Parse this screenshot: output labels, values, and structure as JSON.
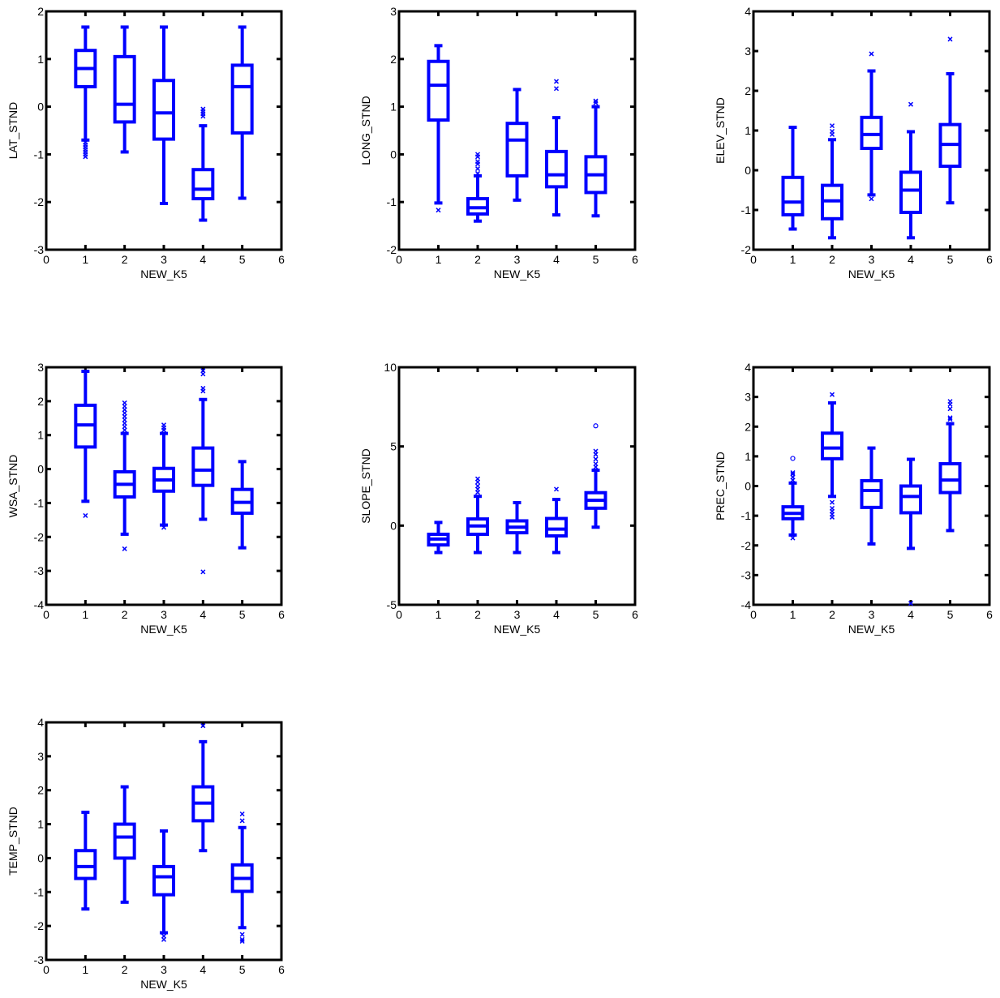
{
  "figure": {
    "box_color": "#0000ff",
    "axis_color": "#000000",
    "background": "#ffffff"
  },
  "chart_data": [
    {
      "type": "box",
      "xlabel": "NEW_K5",
      "ylabel": "LAT_STND",
      "xlim": [
        0,
        6
      ],
      "ylim": [
        -3,
        2
      ],
      "xticks": [
        0,
        1,
        2,
        3,
        4,
        5,
        6
      ],
      "yticks": [
        -3,
        -2,
        -1,
        0,
        1,
        2
      ],
      "categories": [
        1,
        2,
        3,
        4,
        5
      ],
      "boxes": [
        {
          "x": 1,
          "whisker_low": -0.7,
          "q1": 0.42,
          "median": 0.8,
          "q3": 1.18,
          "whisker_high": 1.67,
          "outliers": [
            -0.75,
            -0.8,
            -0.85,
            -0.9,
            -0.95,
            -1.0,
            -1.05
          ],
          "outlier_marker": "x"
        },
        {
          "x": 2,
          "whisker_low": -0.95,
          "q1": -0.32,
          "median": 0.05,
          "q3": 1.05,
          "whisker_high": 1.67,
          "outliers": [],
          "outlier_marker": "x"
        },
        {
          "x": 3,
          "whisker_low": -2.03,
          "q1": -0.68,
          "median": -0.13,
          "q3": 0.55,
          "whisker_high": 1.67,
          "outliers": [],
          "outlier_marker": "x"
        },
        {
          "x": 4,
          "whisker_low": -2.38,
          "q1": -1.93,
          "median": -1.73,
          "q3": -1.32,
          "whisker_high": -0.4,
          "outliers": [
            -0.05,
            -0.1,
            -0.15,
            -0.2
          ],
          "outlier_marker": "x"
        },
        {
          "x": 5,
          "whisker_low": -1.92,
          "q1": -0.55,
          "median": 0.42,
          "q3": 0.87,
          "whisker_high": 1.67,
          "outliers": [],
          "outlier_marker": "x"
        }
      ]
    },
    {
      "type": "box",
      "xlabel": "NEW_K5",
      "ylabel": "LONG_STND",
      "xlim": [
        0,
        6
      ],
      "ylim": [
        -2,
        3
      ],
      "xticks": [
        0,
        1,
        2,
        3,
        4,
        5,
        6
      ],
      "yticks": [
        -2,
        -1,
        0,
        1,
        2,
        3
      ],
      "categories": [
        1,
        2,
        3,
        4,
        5
      ],
      "boxes": [
        {
          "x": 1,
          "whisker_low": -1.02,
          "q1": 0.72,
          "median": 1.45,
          "q3": 1.95,
          "whisker_high": 2.28,
          "outliers": [
            -1.17
          ],
          "outlier_marker": "x"
        },
        {
          "x": 2,
          "whisker_low": -1.4,
          "q1": -1.25,
          "median": -1.12,
          "q3": -0.93,
          "whisker_high": -0.45,
          "outliers": [
            -0.4,
            -0.3,
            -0.2,
            -0.15,
            -0.05,
            0.0
          ],
          "outlier_marker": "x"
        },
        {
          "x": 3,
          "whisker_low": -0.96,
          "q1": -0.45,
          "median": 0.3,
          "q3": 0.65,
          "whisker_high": 1.36,
          "outliers": [],
          "outlier_marker": "x"
        },
        {
          "x": 4,
          "whisker_low": -1.27,
          "q1": -0.68,
          "median": -0.43,
          "q3": 0.06,
          "whisker_high": 0.77,
          "outliers": [
            1.38,
            1.53
          ],
          "outlier_marker": "x"
        },
        {
          "x": 5,
          "whisker_low": -1.29,
          "q1": -0.8,
          "median": -0.43,
          "q3": -0.05,
          "whisker_high": 1.0,
          "outliers": [
            1.08,
            1.12
          ],
          "outlier_marker": "x"
        }
      ]
    },
    {
      "type": "box",
      "xlabel": "NEW_K5",
      "ylabel": "ELEV_STND",
      "xlim": [
        0,
        6
      ],
      "ylim": [
        -2,
        4
      ],
      "xticks": [
        0,
        1,
        2,
        3,
        4,
        5,
        6
      ],
      "yticks": [
        -2,
        -1,
        0,
        1,
        2,
        3,
        4
      ],
      "categories": [
        1,
        2,
        3,
        4,
        5
      ],
      "boxes": [
        {
          "x": 1,
          "whisker_low": -1.48,
          "q1": -1.12,
          "median": -0.8,
          "q3": -0.18,
          "whisker_high": 1.08,
          "outliers": [],
          "outlier_marker": "x"
        },
        {
          "x": 2,
          "whisker_low": -1.7,
          "q1": -1.22,
          "median": -0.77,
          "q3": -0.38,
          "whisker_high": 0.77,
          "outliers": [
            0.9,
            0.98,
            1.12
          ],
          "outlier_marker": "x"
        },
        {
          "x": 3,
          "whisker_low": -0.62,
          "q1": 0.55,
          "median": 0.9,
          "q3": 1.33,
          "whisker_high": 2.5,
          "outliers": [
            -0.72,
            2.93
          ],
          "outlier_marker": "x"
        },
        {
          "x": 4,
          "whisker_low": -1.7,
          "q1": -1.06,
          "median": -0.5,
          "q3": -0.05,
          "whisker_high": 0.97,
          "outliers": [
            1.66
          ],
          "outlier_marker": "x"
        },
        {
          "x": 5,
          "whisker_low": -0.82,
          "q1": 0.1,
          "median": 0.65,
          "q3": 1.15,
          "whisker_high": 2.43,
          "outliers": [
            3.3
          ],
          "outlier_marker": "x"
        }
      ]
    },
    {
      "type": "box",
      "xlabel": "NEW_K5",
      "ylabel": "WSA_STND",
      "xlim": [
        0,
        6
      ],
      "ylim": [
        -4,
        3
      ],
      "xticks": [
        0,
        1,
        2,
        3,
        4,
        5,
        6
      ],
      "yticks": [
        -4,
        -3,
        -2,
        -1,
        0,
        1,
        2,
        3
      ],
      "categories": [
        1,
        2,
        3,
        4,
        5
      ],
      "boxes": [
        {
          "x": 1,
          "whisker_low": -0.95,
          "q1": 0.65,
          "median": 1.3,
          "q3": 1.88,
          "whisker_high": 2.88,
          "outliers": [
            -1.37
          ],
          "outlier_marker": "x"
        },
        {
          "x": 2,
          "whisker_low": -1.92,
          "q1": -0.82,
          "median": -0.45,
          "q3": -0.08,
          "whisker_high": 1.05,
          "outliers": [
            -2.35,
            1.15,
            1.25,
            1.35,
            1.45,
            1.55,
            1.65,
            1.75,
            1.85,
            1.95
          ],
          "outlier_marker": "x"
        },
        {
          "x": 3,
          "whisker_low": -1.65,
          "q1": -0.65,
          "median": -0.32,
          "q3": 0.02,
          "whisker_high": 1.05,
          "outliers": [
            -1.72,
            1.15,
            1.22,
            1.3
          ],
          "outlier_marker": "x"
        },
        {
          "x": 4,
          "whisker_low": -1.48,
          "q1": -0.48,
          "median": -0.03,
          "q3": 0.62,
          "whisker_high": 2.05,
          "outliers": [
            -3.03,
            2.3,
            2.38,
            2.8,
            2.9
          ],
          "outlier_marker": "x"
        },
        {
          "x": 5,
          "whisker_low": -2.32,
          "q1": -1.3,
          "median": -0.98,
          "q3": -0.6,
          "whisker_high": 0.22,
          "outliers": [],
          "outlier_marker": "x"
        }
      ]
    },
    {
      "type": "box",
      "xlabel": "NEW_K5",
      "ylabel": "SLOPE_STND",
      "xlim": [
        0,
        6
      ],
      "ylim": [
        -5,
        10
      ],
      "xticks": [
        0,
        1,
        2,
        3,
        4,
        5,
        6
      ],
      "yticks": [
        -5,
        0,
        5,
        10
      ],
      "categories": [
        1,
        2,
        3,
        4,
        5
      ],
      "boxes": [
        {
          "x": 1,
          "whisker_low": -1.7,
          "q1": -1.22,
          "median": -0.85,
          "q3": -0.55,
          "whisker_high": 0.2,
          "outliers": [],
          "outlier_marker": "x"
        },
        {
          "x": 2,
          "whisker_low": -1.7,
          "q1": -0.55,
          "median": -0.02,
          "q3": 0.42,
          "whisker_high": 1.85,
          "outliers": [
            2.1,
            2.3,
            2.5,
            2.75,
            2.95
          ],
          "outlier_marker": "x"
        },
        {
          "x": 3,
          "whisker_low": -1.7,
          "q1": -0.45,
          "median": -0.1,
          "q3": 0.3,
          "whisker_high": 1.45,
          "outliers": [],
          "outlier_marker": "x"
        },
        {
          "x": 4,
          "whisker_low": -1.7,
          "q1": -0.65,
          "median": -0.22,
          "q3": 0.45,
          "whisker_high": 1.65,
          "outliers": [
            2.3
          ],
          "outlier_marker": "x"
        },
        {
          "x": 5,
          "whisker_low": -0.1,
          "q1": 1.1,
          "median": 1.6,
          "q3": 2.08,
          "whisker_high": 3.5,
          "outliers": [
            3.7,
            3.9,
            4.2,
            4.5,
            4.7
          ],
          "outlier_marker": "x",
          "extra_points": [
            {
              "y": 6.3,
              "marker": "o"
            }
          ]
        }
      ]
    },
    {
      "type": "box",
      "xlabel": "NEW_K5",
      "ylabel": "PREC_STND",
      "xlim": [
        0,
        6
      ],
      "ylim": [
        -4,
        4
      ],
      "xticks": [
        0,
        1,
        2,
        3,
        4,
        5,
        6
      ],
      "yticks": [
        -4,
        -3,
        -2,
        -1,
        0,
        1,
        2,
        3,
        4
      ],
      "categories": [
        1,
        2,
        3,
        4,
        5
      ],
      "boxes": [
        {
          "x": 1,
          "whisker_low": -1.65,
          "q1": -1.1,
          "median": -0.92,
          "q3": -0.7,
          "whisker_high": 0.1,
          "outliers": [
            -1.75,
            0.2,
            0.3,
            0.4,
            0.45
          ],
          "outlier_marker": "x",
          "extra_points": [
            {
              "y": 0.93,
              "marker": "o"
            }
          ]
        },
        {
          "x": 2,
          "whisker_low": -0.35,
          "q1": 0.92,
          "median": 1.28,
          "q3": 1.78,
          "whisker_high": 2.8,
          "outliers": [
            -0.55,
            -0.75,
            -0.85,
            -0.95,
            -1.05,
            3.08
          ],
          "outlier_marker": "x"
        },
        {
          "x": 3,
          "whisker_low": -1.95,
          "q1": -0.72,
          "median": -0.15,
          "q3": 0.18,
          "whisker_high": 1.28,
          "outliers": [],
          "outlier_marker": "x"
        },
        {
          "x": 4,
          "whisker_low": -2.1,
          "q1": -0.9,
          "median": -0.35,
          "q3": 0.0,
          "whisker_high": 0.9,
          "outliers": [
            -3.95
          ],
          "outlier_marker": "x"
        },
        {
          "x": 5,
          "whisker_low": -1.5,
          "q1": -0.22,
          "median": 0.2,
          "q3": 0.75,
          "whisker_high": 2.1,
          "outliers": [
            2.25,
            2.3,
            2.6,
            2.75,
            2.85
          ],
          "outlier_marker": "x"
        }
      ]
    },
    {
      "type": "box",
      "xlabel": "NEW_K5",
      "ylabel": "TEMP_STND",
      "xlim": [
        0,
        6
      ],
      "ylim": [
        -3,
        4
      ],
      "xticks": [
        0,
        1,
        2,
        3,
        4,
        5,
        6
      ],
      "yticks": [
        -3,
        -2,
        -1,
        0,
        1,
        2,
        3,
        4
      ],
      "categories": [
        1,
        2,
        3,
        4,
        5
      ],
      "boxes": [
        {
          "x": 1,
          "whisker_low": -1.5,
          "q1": -0.6,
          "median": -0.25,
          "q3": 0.22,
          "whisker_high": 1.35,
          "outliers": [],
          "outlier_marker": "x"
        },
        {
          "x": 2,
          "whisker_low": -1.3,
          "q1": 0.0,
          "median": 0.62,
          "q3": 1.0,
          "whisker_high": 2.1,
          "outliers": [],
          "outlier_marker": "x"
        },
        {
          "x": 3,
          "whisker_low": -2.2,
          "q1": -1.08,
          "median": -0.55,
          "q3": -0.25,
          "whisker_high": 0.8,
          "outliers": [
            -2.3,
            -2.4
          ],
          "outlier_marker": "x"
        },
        {
          "x": 4,
          "whisker_low": 0.22,
          "q1": 1.1,
          "median": 1.62,
          "q3": 2.1,
          "whisker_high": 3.43,
          "outliers": [
            3.9
          ],
          "outlier_marker": "x"
        },
        {
          "x": 5,
          "whisker_low": -2.05,
          "q1": -0.98,
          "median": -0.6,
          "q3": -0.2,
          "whisker_high": 0.9,
          "outliers": [
            -2.25,
            -2.4,
            -2.45,
            1.1,
            1.3
          ],
          "outlier_marker": "x"
        }
      ]
    }
  ]
}
